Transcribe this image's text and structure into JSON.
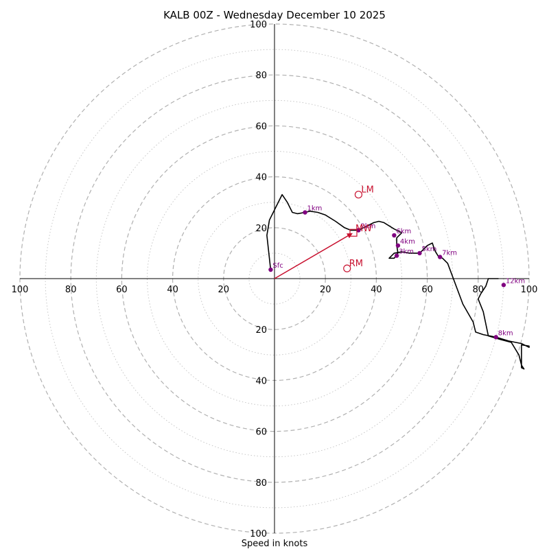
{
  "chart_data": {
    "type": "hodograph",
    "title": "KALB 00Z - Wednesday December 10 2025",
    "xlabel": "Speed in knots",
    "units": "knots",
    "max_speed": 100,
    "ring_labels": [
      "20",
      "40",
      "60",
      "80",
      "100"
    ],
    "axis_ticks": {
      "x_left": [
        "100",
        "80",
        "60",
        "40",
        "20"
      ],
      "x_right": [
        "20",
        "40",
        "60",
        "80",
        "100"
      ],
      "y_up": [
        "20",
        "40",
        "60",
        "80",
        "100"
      ],
      "y_down": [
        "20",
        "40",
        "60",
        "80",
        "100"
      ]
    },
    "trace": [
      [
        -1.5,
        3.5
      ],
      [
        -3,
        17
      ],
      [
        -2,
        23
      ],
      [
        1,
        29
      ],
      [
        3,
        33
      ],
      [
        5,
        30
      ],
      [
        7,
        26
      ],
      [
        9,
        25.5
      ],
      [
        12,
        26
      ],
      [
        14,
        26.5
      ],
      [
        17,
        26
      ],
      [
        20,
        25
      ],
      [
        24,
        22.5
      ],
      [
        27.5,
        20
      ],
      [
        30,
        19
      ],
      [
        33,
        19
      ],
      [
        35,
        20
      ],
      [
        37,
        21
      ],
      [
        39,
        22
      ],
      [
        41,
        22.5
      ],
      [
        43,
        22
      ],
      [
        47,
        19.5
      ],
      [
        50,
        18
      ],
      [
        48,
        16
      ],
      [
        48,
        13
      ],
      [
        48.5,
        10
      ],
      [
        47,
        8
      ],
      [
        45,
        8
      ],
      [
        47,
        10
      ],
      [
        50,
        10.5
      ],
      [
        53,
        10
      ],
      [
        57,
        10
      ],
      [
        60,
        13
      ],
      [
        62,
        14
      ],
      [
        63,
        11
      ],
      [
        64.5,
        8.5
      ],
      [
        66,
        8
      ],
      [
        68,
        6
      ],
      [
        74,
        -10
      ],
      [
        78,
        -17
      ],
      [
        79,
        -21
      ],
      [
        82,
        -22
      ],
      [
        87,
        -23
      ],
      [
        92,
        -24.5
      ],
      [
        97,
        -25.5
      ],
      [
        100,
        -27
      ],
      [
        100,
        -26.5
      ],
      [
        97,
        -26
      ],
      [
        97,
        -35
      ],
      [
        98,
        -35.5
      ],
      [
        97,
        -34
      ],
      [
        96,
        -30
      ],
      [
        93,
        -25
      ],
      [
        89,
        -24
      ],
      [
        84,
        -22.5
      ],
      [
        82,
        -13
      ],
      [
        80,
        -8
      ],
      [
        81,
        -6
      ],
      [
        83,
        -3
      ],
      [
        84,
        0
      ],
      [
        88,
        0
      ]
    ],
    "height_markers": [
      {
        "label": "Sfc",
        "u": -1.5,
        "v": 3.5
      },
      {
        "label": "1km",
        "u": 12,
        "v": 26
      },
      {
        "label": "2km",
        "u": 33,
        "v": 19
      },
      {
        "label": "3km",
        "u": 48,
        "v": 9
      },
      {
        "label": "4km",
        "u": 48.5,
        "v": 13
      },
      {
        "label": "5km",
        "u": 57,
        "v": 10
      },
      {
        "label": "6km",
        "u": 47,
        "v": 17
      },
      {
        "label": "7km",
        "u": 65,
        "v": 8.5
      },
      {
        "label": "8km",
        "u": 87,
        "v": -23
      },
      {
        "label": "12km",
        "u": 90,
        "v": -2.5
      }
    ],
    "storm_motions": {
      "MW": {
        "label": "MW",
        "u": 31,
        "v": 18
      },
      "LM": {
        "label": "LM",
        "u": 33,
        "v": 33
      },
      "RM": {
        "label": "RM",
        "u": 28.5,
        "v": 4
      }
    },
    "colors": {
      "trace": "#000000",
      "markers": "#800080",
      "storm_motion": "#c8102e",
      "grid": "#b0b0b0"
    }
  }
}
